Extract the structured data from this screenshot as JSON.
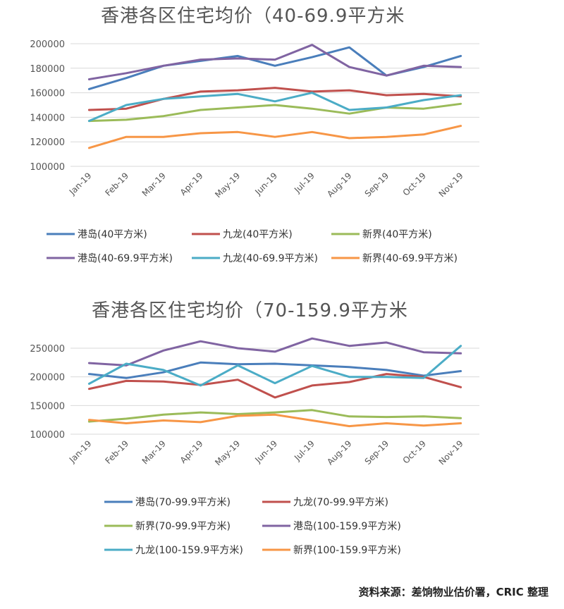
{
  "chart_data": [
    {
      "type": "line",
      "title": "香港各区住宅均价（40-69.9平方米",
      "categories": [
        "Jan-19",
        "Feb-19",
        "Mar-19",
        "Apr-19",
        "May-19",
        "Jun-19",
        "Jul-19",
        "Aug-19",
        "Sep-19",
        "Oct-19",
        "Nov-19"
      ],
      "ylim": [
        100000,
        200000
      ],
      "yticks": [
        100000,
        120000,
        140000,
        160000,
        180000,
        200000
      ],
      "grid": true,
      "legend_position": "bottom",
      "series": [
        {
          "name": "港岛(40平方米)",
          "color": "#4a7ebb",
          "values": [
            163000,
            172000,
            182000,
            186000,
            190000,
            182000,
            189000,
            197000,
            174000,
            181000,
            190000
          ]
        },
        {
          "name": "九龙(40平方米)",
          "color": "#c0504d",
          "values": [
            146000,
            147000,
            155000,
            161000,
            162000,
            164000,
            161000,
            162000,
            158000,
            159000,
            157000
          ]
        },
        {
          "name": "新界(40平方米)",
          "color": "#9bbb59",
          "values": [
            137000,
            138000,
            141000,
            146000,
            148000,
            150000,
            147000,
            143000,
            148000,
            147000,
            151000
          ]
        },
        {
          "name": "港岛(40-69.9平方米)",
          "color": "#8064a2",
          "values": [
            171000,
            176000,
            182000,
            187000,
            188000,
            187000,
            199000,
            181000,
            174000,
            182000,
            181000
          ]
        },
        {
          "name": "九龙(40-69.9平方米)",
          "color": "#4bacc6",
          "values": [
            137000,
            150000,
            155000,
            157000,
            159000,
            153000,
            160000,
            146000,
            148000,
            154000,
            158000
          ]
        },
        {
          "name": "新界(40-69.9平方米)",
          "color": "#f79646",
          "values": [
            115000,
            124000,
            124000,
            127000,
            128000,
            124000,
            128000,
            123000,
            124000,
            126000,
            133000
          ]
        }
      ]
    },
    {
      "type": "line",
      "title": "香港各区住宅均价（70-159.9平方米",
      "categories": [
        "Jan-19",
        "Feb-19",
        "Mar-19",
        "Apr-19",
        "May-19",
        "Jun-19",
        "Jul-19",
        "Aug-19",
        "Sep-19",
        "Oct-19",
        "Nov-19"
      ],
      "ylim": [
        100000,
        250000
      ],
      "yticks": [
        100000,
        150000,
        200000,
        250000
      ],
      "grid": true,
      "legend_position": "bottom",
      "series": [
        {
          "name": "港岛(70-99.9平方米)",
          "color": "#4a7ebb",
          "values": [
            205000,
            198000,
            208000,
            225000,
            222000,
            223000,
            220000,
            217000,
            212000,
            202000,
            210000
          ]
        },
        {
          "name": "九龙(70-99.9平方米)",
          "color": "#c0504d",
          "values": [
            179000,
            193000,
            192000,
            186000,
            195000,
            164000,
            185000,
            191000,
            205000,
            200000,
            182000
          ]
        },
        {
          "name": "新界(70-99.9平方米)",
          "color": "#9bbb59",
          "values": [
            122000,
            127000,
            134000,
            138000,
            135000,
            138000,
            142000,
            131000,
            130000,
            131000,
            128000
          ]
        },
        {
          "name": "港岛(100-159.9平方米)",
          "color": "#8064a2",
          "values": [
            224000,
            220000,
            246000,
            262000,
            250000,
            244000,
            267000,
            254000,
            260000,
            243000,
            241000
          ]
        },
        {
          "name": "九龙(100-159.9平方米)",
          "color": "#4bacc6",
          "values": [
            188000,
            223000,
            212000,
            185000,
            220000,
            189000,
            219000,
            200000,
            200000,
            198000,
            254000
          ]
        },
        {
          "name": "新界(100-159.9平方米)",
          "color": "#f79646",
          "values": [
            125000,
            119000,
            124000,
            121000,
            132000,
            134000,
            124000,
            114000,
            119000,
            115000,
            119000
          ]
        }
      ]
    }
  ],
  "titles": [
    "香港各区住宅均价（40-69.9平方米",
    "香港各区住宅均价（70-159.9平方米"
  ],
  "source": "资料来源：差饷物业估价署，CRIC 整理"
}
